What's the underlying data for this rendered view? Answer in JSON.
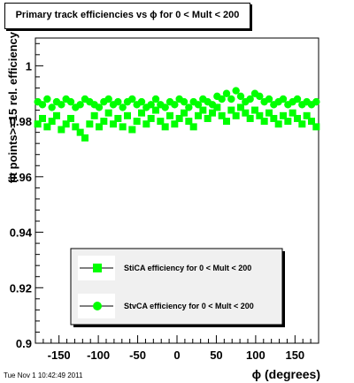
{
  "canvas": {
    "title": "Primary track efficiencies vs ϕ for 0 < Mult < 200",
    "timestamp": "Tue Nov  1 10:42:49 2011"
  },
  "chart_data": {
    "type": "scatter",
    "xlabel": "ϕ (degrees)",
    "ylabel": "fit points>=15 rel. efficiency",
    "xlim": [
      -180,
      180
    ],
    "ylim": [
      0.9,
      1.01
    ],
    "xticks": [
      -150,
      -100,
      -50,
      0,
      50,
      100,
      150
    ],
    "xtick_labels": [
      "-150",
      "-100",
      "-50",
      "0",
      "50",
      "100",
      "150"
    ],
    "yticks": [
      0.9,
      0.92,
      0.94,
      0.96,
      0.98,
      1.0
    ],
    "ytick_labels": [
      "0.9",
      "0.92",
      "0.94",
      "0.96",
      "0.98",
      "1"
    ],
    "grid": false,
    "legend_position": "bottom-center",
    "series": [
      {
        "name": "StiCA efficiency  for 0 < Mult < 200",
        "marker": "square",
        "color": "#00ff00",
        "x": [
          -177,
          -171,
          -165,
          -159,
          -153,
          -147,
          -141,
          -135,
          -129,
          -123,
          -117,
          -111,
          -105,
          -99,
          -93,
          -87,
          -81,
          -75,
          -69,
          -63,
          -57,
          -51,
          -45,
          -39,
          -33,
          -27,
          -21,
          -15,
          -9,
          -3,
          3,
          9,
          15,
          21,
          27,
          33,
          39,
          45,
          51,
          57,
          63,
          69,
          75,
          81,
          87,
          93,
          99,
          105,
          111,
          117,
          123,
          129,
          135,
          141,
          147,
          153,
          159,
          165,
          171,
          177
        ],
        "y": [
          0.979,
          0.981,
          0.978,
          0.98,
          0.982,
          0.977,
          0.979,
          0.981,
          0.978,
          0.976,
          0.974,
          0.979,
          0.982,
          0.978,
          0.98,
          0.983,
          0.979,
          0.981,
          0.978,
          0.982,
          0.977,
          0.98,
          0.983,
          0.979,
          0.981,
          0.984,
          0.98,
          0.978,
          0.982,
          0.979,
          0.981,
          0.983,
          0.98,
          0.978,
          0.982,
          0.984,
          0.981,
          0.983,
          0.985,
          0.982,
          0.98,
          0.984,
          0.982,
          0.985,
          0.983,
          0.981,
          0.984,
          0.982,
          0.98,
          0.983,
          0.981,
          0.979,
          0.982,
          0.98,
          0.983,
          0.981,
          0.979,
          0.982,
          0.98,
          0.978
        ]
      },
      {
        "name": "StvCA efficiency  for 0 < Mult < 200",
        "marker": "circle",
        "color": "#00ff00",
        "x": [
          -177,
          -171,
          -165,
          -159,
          -153,
          -147,
          -141,
          -135,
          -129,
          -123,
          -117,
          -111,
          -105,
          -99,
          -93,
          -87,
          -81,
          -75,
          -69,
          -63,
          -57,
          -51,
          -45,
          -39,
          -33,
          -27,
          -21,
          -15,
          -9,
          -3,
          3,
          9,
          15,
          21,
          27,
          33,
          39,
          45,
          51,
          57,
          63,
          69,
          75,
          81,
          87,
          93,
          99,
          105,
          111,
          117,
          123,
          129,
          135,
          141,
          147,
          153,
          159,
          165,
          171,
          177
        ],
        "y": [
          0.987,
          0.986,
          0.988,
          0.985,
          0.987,
          0.986,
          0.988,
          0.987,
          0.985,
          0.986,
          0.988,
          0.987,
          0.986,
          0.985,
          0.987,
          0.988,
          0.986,
          0.987,
          0.985,
          0.987,
          0.988,
          0.986,
          0.987,
          0.985,
          0.986,
          0.988,
          0.986,
          0.985,
          0.987,
          0.986,
          0.988,
          0.987,
          0.985,
          0.987,
          0.986,
          0.988,
          0.987,
          0.986,
          0.989,
          0.988,
          0.99,
          0.988,
          0.991,
          0.989,
          0.987,
          0.988,
          0.99,
          0.989,
          0.987,
          0.988,
          0.986,
          0.987,
          0.988,
          0.986,
          0.987,
          0.988,
          0.986,
          0.987,
          0.986,
          0.987
        ]
      }
    ]
  }
}
